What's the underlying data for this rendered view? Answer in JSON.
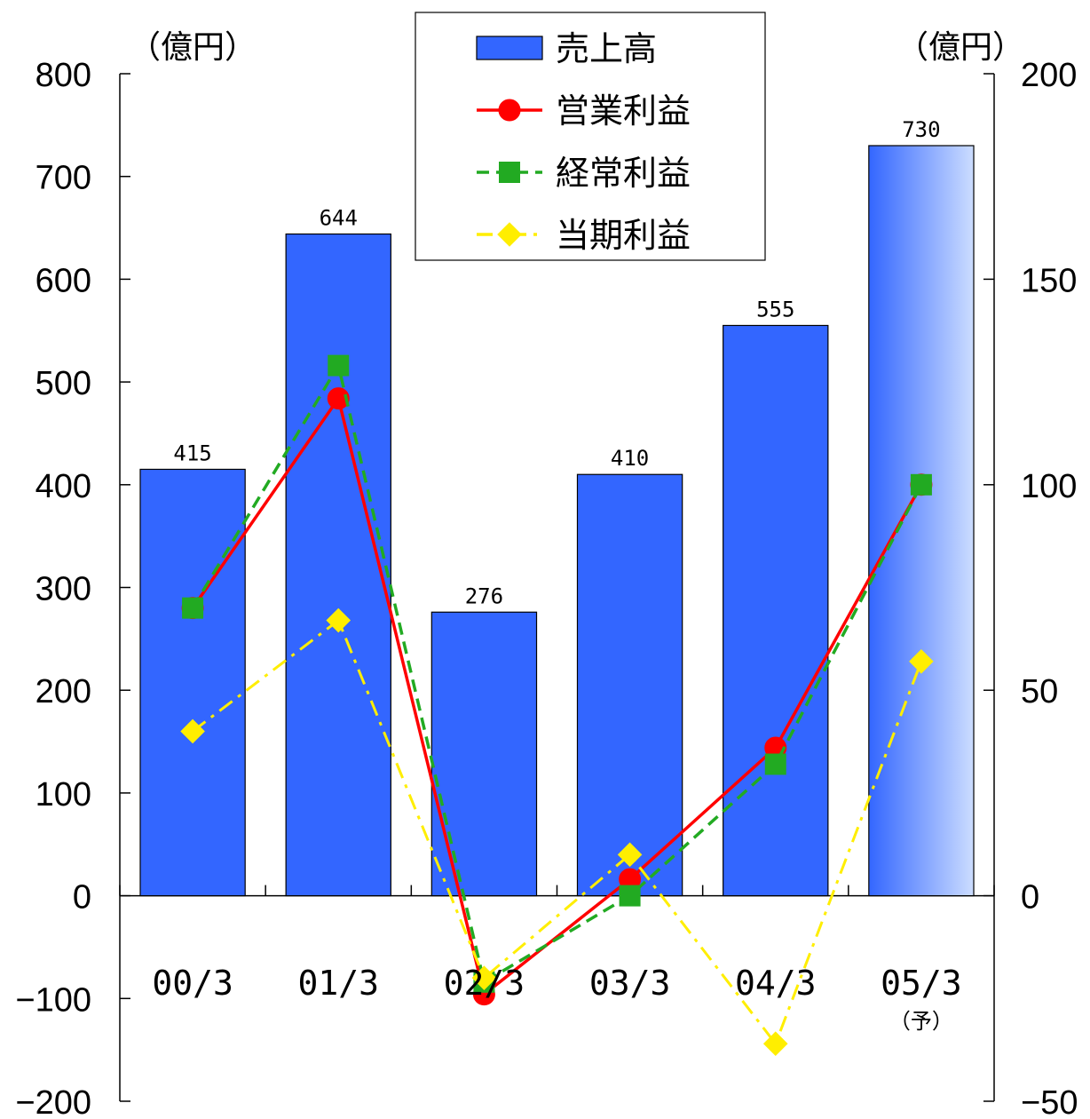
{
  "chart_data": {
    "type": "bar",
    "categories": [
      "00/3",
      "01/3",
      "02/3",
      "03/3",
      "04/3",
      "05/3"
    ],
    "category_notes": [
      "",
      "",
      "",
      "",
      "",
      "（予）"
    ],
    "left_axis": {
      "unit": "（億円）",
      "ylim": [
        -200,
        800
      ],
      "ticks": [
        "800",
        "700",
        "600",
        "500",
        "400",
        "300",
        "200",
        "100",
        "0",
        "−100",
        "−200"
      ]
    },
    "right_axis": {
      "unit": "（億円）",
      "ylim": [
        -50,
        200
      ],
      "ticks": [
        "200",
        "150",
        "100",
        "50",
        "0",
        "−50"
      ]
    },
    "series": [
      {
        "name": "売上高",
        "kind": "bar",
        "axis": "left",
        "color": "#3366FF",
        "values": [
          415,
          644,
          276,
          410,
          555,
          730
        ],
        "labels": [
          "415",
          "644",
          "276",
          "410",
          "555",
          "730"
        ]
      },
      {
        "name": "営業利益",
        "kind": "line",
        "axis": "right",
        "color": "#FF0000",
        "marker": "circle",
        "dash": "solid",
        "values": [
          70,
          121,
          -24,
          4,
          36,
          100
        ]
      },
      {
        "name": "経常利益",
        "kind": "line",
        "axis": "right",
        "color": "#22AA22",
        "marker": "square",
        "dash": "dashed",
        "values": [
          70,
          129,
          -21,
          0,
          32,
          100
        ]
      },
      {
        "name": "当期利益",
        "kind": "line",
        "axis": "right",
        "color": "#FFEE00",
        "marker": "diamond",
        "dash": "dashdot",
        "values": [
          40,
          67,
          -20,
          10,
          -36,
          57
        ]
      }
    ],
    "legend_position": "top-center",
    "grid": false,
    "forecast_gradient_end": "#CCDDFF"
  }
}
